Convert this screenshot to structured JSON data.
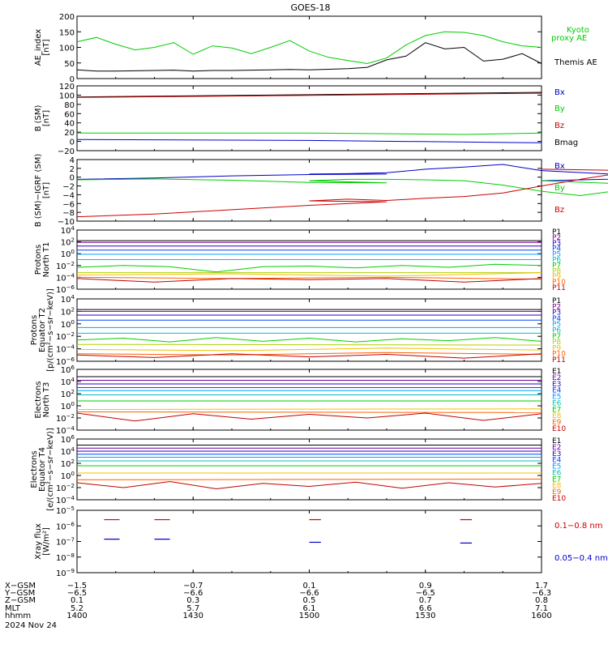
{
  "title": "GOES-18",
  "date_label": "2024 Nov 24",
  "colors": {
    "axis": "#000000",
    "green": "#00cc00",
    "blue": "#0000cc",
    "red": "#cc0000",
    "black": "#000000"
  },
  "channel_colors": {
    "P1": "#000000",
    "P2": "#7a0090",
    "P3": "#2a00c0",
    "P4": "#0044ff",
    "P5": "#00a0ff",
    "P6": "#00c0c0",
    "P7": "#00d000",
    "P8": "#b0d000",
    "P9": "#f0c000",
    "P10": "#ff6000",
    "P11": "#c00000",
    "E1": "#000000",
    "E2": "#6a00a0",
    "E3": "#2a00c0",
    "E4": "#0044ff",
    "E5": "#00a0ff",
    "E6": "#00c0c0",
    "E7": "#00d000",
    "E8": "#f0c000",
    "E9": "#ff6000",
    "E10": "#c00000"
  },
  "chart_data": [
    {
      "type": "line",
      "ylabel": [
        "AE_index",
        "[nT]"
      ],
      "ylim": [
        0,
        200
      ],
      "yticks": [
        "0",
        "50",
        "100",
        "150",
        "200"
      ],
      "legend": [
        {
          "name": "Kyoto",
          "color": "#00cc00"
        },
        {
          "name": "proxy AE",
          "color": "#00cc00"
        },
        {
          "name": "Themis AE",
          "color": "#000000"
        }
      ],
      "series": [
        {
          "name": "Kyoto proxy AE",
          "color": "#00cc00",
          "x": [
            1400,
            1405,
            1410,
            1415,
            1420,
            1425,
            1430,
            1435,
            1440,
            1445,
            1450,
            1455,
            1500,
            1505,
            1510,
            1515,
            1520,
            1525,
            1530,
            1535,
            1540,
            1545,
            1550,
            1555,
            1600
          ],
          "y": [
            118,
            132,
            110,
            92,
            100,
            115,
            78,
            105,
            98,
            80,
            100,
            122,
            88,
            68,
            58,
            48,
            66,
            108,
            138,
            150,
            148,
            138,
            118,
            105,
            100
          ]
        },
        {
          "name": "Themis AE",
          "color": "#000000",
          "x": [
            1400,
            1405,
            1410,
            1415,
            1420,
            1425,
            1430,
            1435,
            1440,
            1445,
            1450,
            1455,
            1500,
            1505,
            1510,
            1515,
            1520,
            1525,
            1530,
            1535,
            1540,
            1545,
            1550,
            1555,
            1600
          ],
          "y": [
            28,
            24,
            24,
            25,
            26,
            27,
            24,
            26,
            26,
            27,
            28,
            29,
            28,
            30,
            32,
            36,
            60,
            72,
            115,
            95,
            100,
            56,
            62,
            80,
            48
          ]
        }
      ]
    },
    {
      "type": "line",
      "ylabel": [
        "B (SM)",
        "[nT]"
      ],
      "ylim": [
        -20,
        120
      ],
      "yticks": [
        "−20",
        "0",
        "20",
        "40",
        "60",
        "80",
        "100",
        "120"
      ],
      "legend": [
        {
          "name": "Bx",
          "color": "#0000cc"
        },
        {
          "name": "By",
          "color": "#00cc00"
        },
        {
          "name": "Bz",
          "color": "#cc0000"
        },
        {
          "name": "Bmag",
          "color": "#000000"
        }
      ],
      "series": [
        {
          "name": "Bmag",
          "color": "#000000",
          "x": [
            1400,
            1600
          ],
          "y": [
            96,
            106
          ]
        },
        {
          "name": "Bz",
          "color": "#cc0000",
          "x": [
            1400,
            1600
          ],
          "y": [
            95,
            104
          ]
        },
        {
          "name": "By",
          "color": "#00cc00",
          "x": [
            1400,
            1500,
            1540,
            1600
          ],
          "y": [
            18,
            18,
            15,
            18
          ]
        },
        {
          "name": "Bx",
          "color": "#0000cc",
          "x": [
            1400,
            1500,
            1560,
            1600
          ],
          "y": [
            4,
            2,
            -3,
            -6
          ]
        }
      ]
    },
    {
      "type": "line",
      "ylabel": [
        "B (SM)−IGRF (SM)",
        "[nT]"
      ],
      "ylim": [
        -10,
        4
      ],
      "yticks": [
        "−10",
        "−8",
        "−6",
        "−4",
        "−2",
        "0",
        "2",
        "4"
      ],
      "legend": [
        {
          "name": "Bx",
          "color": "#0000cc"
        },
        {
          "name": "By",
          "color": "#00cc00"
        },
        {
          "name": "Bz",
          "color": "#cc0000"
        }
      ],
      "series": [
        {
          "name": "Bx",
          "color": "#0000cc",
          "x": [
            1400,
            1420,
            1440,
            1460,
            1480,
            1500,
            1510,
            1520,
            1530,
            1540,
            1550,
            1560,
            1580,
            1590,
            1600
          ],
          "y": [
            -0.5,
            -0.2,
            0.3,
            0.6,
            0.7,
            0.7,
            0.8,
            1.0,
            1.8,
            2.3,
            2.9,
            1.5,
            0.6,
            -0.2,
            -0.8
          ]
        },
        {
          "name": "By",
          "color": "#00cc00",
          "x": [
            1400,
            1420,
            1440,
            1460,
            1480,
            1500,
            1510,
            1520,
            1530,
            1540,
            1550,
            1560,
            1570,
            1580,
            1590,
            1600
          ],
          "y": [
            -0.6,
            -0.4,
            -0.7,
            -1.2,
            -1.3,
            -0.8,
            -0.5,
            -0.5,
            -0.6,
            -0.8,
            -1.8,
            -3.2,
            -4.2,
            -3.0,
            -1.8,
            -0.8
          ]
        },
        {
          "name": "Bz",
          "color": "#cc0000",
          "x": [
            1400,
            1420,
            1440,
            1460,
            1480,
            1500,
            1510,
            1520,
            1530,
            1540,
            1550,
            1560,
            1570,
            1580,
            1590,
            1600
          ],
          "y": [
            -9.0,
            -8.4,
            -7.4,
            -6.4,
            -5.6,
            -5.4,
            -5.0,
            -5.3,
            -4.8,
            -4.4,
            -3.6,
            -2.0,
            -0.5,
            0.9,
            1.4,
            1.8
          ]
        }
      ]
    },
    {
      "type": "line",
      "log": true,
      "ylabel": [
        "Protons",
        "North T1"
      ],
      "ylim_exp": [
        -6,
        4
      ],
      "ytick_exp": [
        -6,
        -4,
        -2,
        0,
        2,
        4
      ],
      "legend_keys": [
        "P1",
        "P2",
        "P3",
        "P4",
        "P5",
        "P6",
        "P7",
        "P8",
        "P9",
        "P10",
        "P11"
      ],
      "series": [
        {
          "name": "P1",
          "values": [
            2.2,
            2.2
          ]
        },
        {
          "name": "P2",
          "values": [
            1.9,
            1.9
          ]
        },
        {
          "name": "P3",
          "values": [
            1.3,
            1.3
          ]
        },
        {
          "name": "P4",
          "values": [
            0.6,
            0.6
          ]
        },
        {
          "name": "P5",
          "values": [
            -0.1,
            -0.1
          ]
        },
        {
          "name": "P6",
          "values": [
            -1.0,
            -1.0
          ]
        },
        {
          "name": "P7",
          "values": [
            -2.3,
            -2.0,
            -2.2,
            -3.1,
            -2.2,
            -2.1,
            -2.4,
            -2.0,
            -2.3,
            -1.8,
            -2.0
          ]
        },
        {
          "name": "P8",
          "values": [
            -3.2,
            -3.2
          ]
        },
        {
          "name": "P9",
          "values": [
            -3.6,
            -3.4,
            -3.8,
            -3.2
          ]
        },
        {
          "name": "P10",
          "values": [
            -4.0,
            -4.2,
            -4.0,
            -4.3
          ]
        },
        {
          "name": "P11",
          "values": [
            -4.2,
            -4.8,
            -4.2,
            -4.4,
            -4.2,
            -4.8,
            -4.2
          ]
        }
      ]
    },
    {
      "type": "line",
      "log": true,
      "ylabel": [
        "Protons",
        "Equator T2",
        "[p/(cm²−s−sr−keV)]"
      ],
      "ylim_exp": [
        -6,
        4
      ],
      "ytick_exp": [
        -6,
        -4,
        -2,
        0,
        2,
        4
      ],
      "legend_keys": [
        "P1",
        "P2",
        "P3",
        "P4",
        "P5",
        "P6",
        "P7",
        "P8",
        "P9",
        "P10",
        "P11"
      ],
      "series": [
        {
          "name": "P1",
          "values": [
            2.3,
            2.3
          ]
        },
        {
          "name": "P2",
          "values": [
            2.0,
            2.0
          ]
        },
        {
          "name": "P3",
          "values": [
            1.4,
            1.4
          ]
        },
        {
          "name": "P4",
          "values": [
            0.6,
            0.6
          ]
        },
        {
          "name": "P5",
          "values": [
            -0.6,
            -0.6
          ]
        },
        {
          "name": "P6",
          "values": [
            -1.5,
            -1.5
          ]
        },
        {
          "name": "P7",
          "values": [
            -2.6,
            -2.3,
            -2.9,
            -2.2,
            -2.8,
            -2.3,
            -2.9,
            -2.4,
            -2.7,
            -2.2,
            -2.8
          ]
        },
        {
          "name": "P8",
          "values": [
            -3.3,
            -3.4
          ]
        },
        {
          "name": "P9",
          "values": [
            -4.1,
            -4.3,
            -3.9,
            -4.2
          ]
        },
        {
          "name": "P10",
          "values": [
            -4.8,
            -5.0,
            -4.6,
            -4.9
          ]
        },
        {
          "name": "P11",
          "values": [
            -5.0,
            -5.4,
            -4.8,
            -5.3,
            -4.9,
            -5.5,
            -4.8
          ]
        }
      ]
    },
    {
      "type": "line",
      "log": true,
      "ylabel": [
        "Electrons",
        "North T3"
      ],
      "ylim_exp": [
        -4,
        6
      ],
      "ytick_exp": [
        -4,
        -2,
        0,
        2,
        4,
        6
      ],
      "legend_keys": [
        "E1",
        "E2",
        "E3",
        "E4",
        "E5",
        "E6",
        "E7",
        "E8",
        "E9",
        "E10"
      ],
      "series": [
        {
          "name": "E1",
          "values": [
            4.8,
            4.8
          ]
        },
        {
          "name": "E2",
          "values": [
            4.2,
            4.2
          ]
        },
        {
          "name": "E3",
          "values": [
            3.6,
            3.6
          ]
        },
        {
          "name": "E4",
          "values": [
            3.0,
            3.0
          ]
        },
        {
          "name": "E5",
          "values": [
            2.5,
            2.5
          ]
        },
        {
          "name": "E6",
          "values": [
            1.8,
            1.8
          ]
        },
        {
          "name": "E7",
          "values": [
            0.8,
            0.8
          ]
        },
        {
          "name": "E8",
          "values": [
            -0.6,
            -0.5
          ]
        },
        {
          "name": "E9",
          "values": [
            -1.0,
            -1.1
          ]
        },
        {
          "name": "E10",
          "values": [
            -1.2,
            -2.5,
            -1.3,
            -2.2,
            -1.4,
            -2.0,
            -1.2,
            -2.4,
            -1.3
          ]
        }
      ]
    },
    {
      "type": "line",
      "log": true,
      "ylabel": [
        "Electrons",
        "Equator T4",
        "[e/(cm²−s−sr−keV)]"
      ],
      "ylim_exp": [
        -4,
        6
      ],
      "ytick_exp": [
        -4,
        -2,
        0,
        2,
        4,
        6
      ],
      "legend_keys": [
        "E1",
        "E2",
        "E3",
        "E4",
        "E5",
        "E6",
        "E7",
        "E8",
        "E9",
        "E10"
      ],
      "series": [
        {
          "name": "E1",
          "values": [
            5.0,
            5.0
          ]
        },
        {
          "name": "E2",
          "values": [
            4.5,
            4.5
          ]
        },
        {
          "name": "E3",
          "values": [
            4.0,
            4.0
          ]
        },
        {
          "name": "E4",
          "values": [
            3.5,
            3.5
          ]
        },
        {
          "name": "E5",
          "values": [
            3.0,
            3.0
          ]
        },
        {
          "name": "E6",
          "values": [
            2.4,
            2.4
          ]
        },
        {
          "name": "E7",
          "values": [
            1.6,
            1.6
          ]
        },
        {
          "name": "E8",
          "values": [
            0.4,
            0.4
          ]
        },
        {
          "name": "E9",
          "values": [
            -0.7,
            -0.6
          ]
        },
        {
          "name": "E10",
          "values": [
            -1.2,
            -2.0,
            -1.0,
            -2.2,
            -1.3,
            -1.8,
            -1.1,
            -2.1,
            -1.2,
            -1.9,
            -1.3
          ]
        }
      ]
    },
    {
      "type": "scatter",
      "log": true,
      "ylabel": [
        "Xray flux",
        "[W/m²]"
      ],
      "ylim_exp": [
        -9,
        -5
      ],
      "ytick_exp": [
        -9,
        -8,
        -7,
        -6,
        -5
      ],
      "legend": [
        {
          "name": "0.1−0.8 nm",
          "color": "#cc0000"
        },
        {
          "name": "0.05−0.4 nm",
          "color": "#0000cc"
        }
      ],
      "series": [
        {
          "name": "0.1−0.8 nm",
          "color": "#cc0000",
          "segments": [
            [
              1407,
              1411,
              -5.6
            ],
            [
              1420,
              1424,
              -5.6
            ],
            [
              1500,
              1503,
              -5.6
            ],
            [
              1539,
              1542,
              -5.6
            ]
          ]
        },
        {
          "name": "0.05−0.4 nm",
          "color": "#0000cc",
          "segments": [
            [
              1407,
              1411,
              -6.85
            ],
            [
              1420,
              1424,
              -6.85
            ],
            [
              1500,
              1503,
              -7.05
            ],
            [
              1539,
              1542,
              -7.1
            ]
          ]
        }
      ]
    }
  ],
  "x_axis": {
    "ticks": [
      1400,
      1430,
      1500,
      1530,
      1600
    ],
    "rows": [
      {
        "label": "X−GSM",
        "values": [
          "−1.5",
          "−0.7",
          "0.1",
          "0.9",
          "1.7"
        ]
      },
      {
        "label": "Y−GSM",
        "values": [
          "−6.5",
          "−6.6",
          "−6.6",
          "−6.5",
          "−6.3"
        ]
      },
      {
        "label": "Z−GSM",
        "values": [
          "0.1",
          "0.3",
          "0.5",
          "0.7",
          "0.8"
        ]
      },
      {
        "label": "MLT",
        "values": [
          "5.2",
          "5.7",
          "6.1",
          "6.6",
          "7.1"
        ]
      },
      {
        "label": "hhmm",
        "values": [
          "1400",
          "1430",
          "1500",
          "1530",
          "1600"
        ]
      }
    ]
  }
}
